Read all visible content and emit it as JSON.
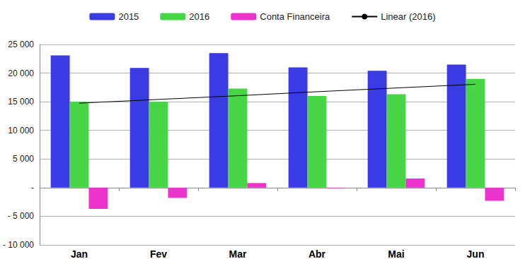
{
  "chart_data": {
    "type": "bar",
    "categories": [
      "Jan",
      "Fev",
      "Mar",
      "Abr",
      "Mai",
      "Jun"
    ],
    "series": [
      {
        "name": "2015",
        "color": "#3b3be3",
        "values": [
          23100,
          20900,
          23500,
          21000,
          20400,
          21500
        ]
      },
      {
        "name": "2016",
        "color": "#46d646",
        "values": [
          15000,
          15000,
          17300,
          16000,
          16300,
          19000
        ]
      },
      {
        "name": "Conta Financeira",
        "color": "#ee33cc",
        "values": [
          -3700,
          -1800,
          800,
          -100,
          1600,
          -2300
        ]
      },
      {
        "name": "Linear (2016)",
        "color": "#000000",
        "type": "line",
        "values": [
          14750,
          15400,
          16050,
          16750,
          17400,
          18050
        ]
      }
    ],
    "ylim": [
      -10000,
      25000
    ],
    "yticks": [
      {
        "value": -10000,
        "label": "- 10 000"
      },
      {
        "value": -5000,
        "label": "- 5 000"
      },
      {
        "value": 0,
        "label": "-"
      },
      {
        "value": 5000,
        "label": "5 000"
      },
      {
        "value": 10000,
        "label": "10 000"
      },
      {
        "value": 15000,
        "label": "15 000"
      },
      {
        "value": 20000,
        "label": "20 000"
      },
      {
        "value": 25000,
        "label": "25 000"
      }
    ],
    "grid": true,
    "legend": "top"
  }
}
